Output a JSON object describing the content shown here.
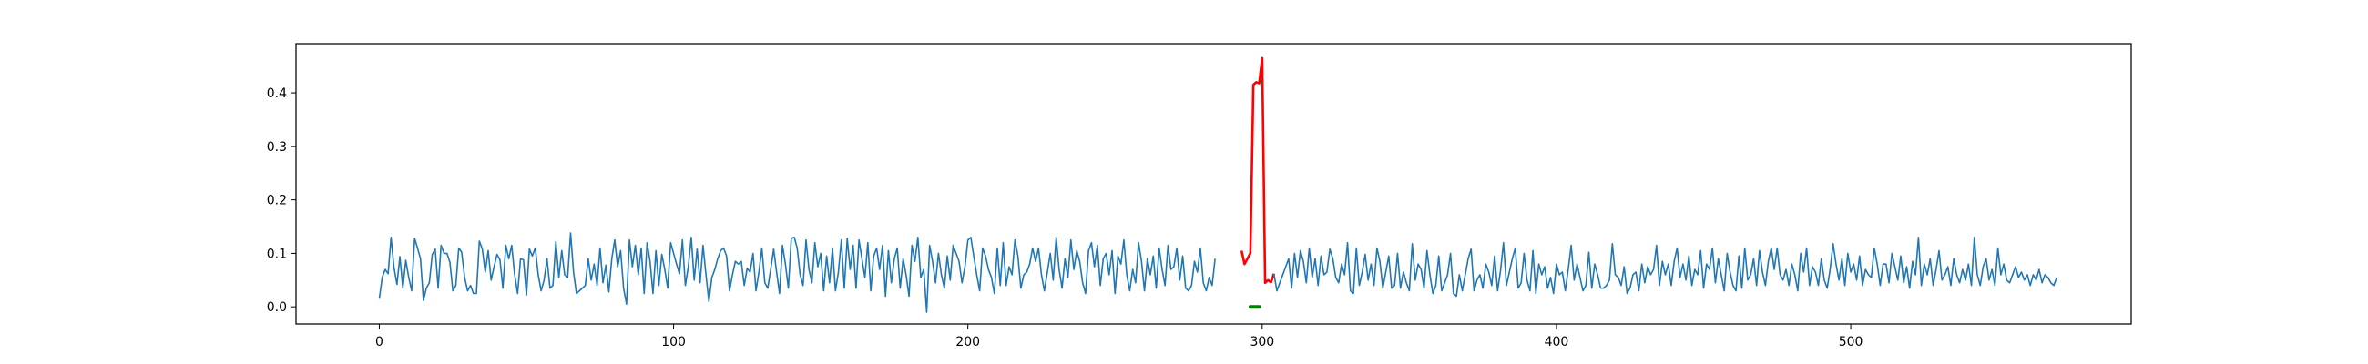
{
  "chart_data": {
    "type": "line",
    "title": "",
    "xlabel": "",
    "ylabel": "",
    "xlim": [
      -28.3,
      595.3
    ],
    "ylim": [
      -0.032,
      0.492
    ],
    "grid": false,
    "legend": null,
    "xticks": [
      0,
      100,
      200,
      300,
      400,
      500
    ],
    "xtick_labels": [
      "0",
      "100",
      "200",
      "300",
      "400",
      "500"
    ],
    "yticks": [
      0.0,
      0.1,
      0.2,
      0.3,
      0.4
    ],
    "ytick_labels": [
      "0.0",
      "0.1",
      "0.2",
      "0.3",
      "0.4"
    ],
    "series": [
      {
        "role": "signal",
        "color": "#1f77b4",
        "x_start": 0,
        "values": [
          0.015,
          0.055,
          0.07,
          0.062,
          0.13,
          0.073,
          0.042,
          0.094,
          0.035,
          0.087,
          0.055,
          0.03,
          0.128,
          0.11,
          0.09,
          0.012,
          0.035,
          0.045,
          0.098,
          0.108,
          0.035,
          0.115,
          0.1,
          0.1,
          0.083,
          0.03,
          0.04,
          0.11,
          0.102,
          0.055,
          0.03,
          0.04,
          0.025,
          0.025,
          0.123,
          0.108,
          0.065,
          0.105,
          0.05,
          0.075,
          0.098,
          0.088,
          0.035,
          0.115,
          0.09,
          0.115,
          0.06,
          0.025,
          0.09,
          0.088,
          0.022,
          0.108,
          0.095,
          0.11,
          0.06,
          0.03,
          0.05,
          0.09,
          0.035,
          0.04,
          0.122,
          0.055,
          0.105,
          0.06,
          0.055,
          0.138,
          0.065,
          0.025,
          0.03,
          0.035,
          0.04,
          0.09,
          0.05,
          0.08,
          0.04,
          0.11,
          0.045,
          0.078,
          0.028,
          0.09,
          0.125,
          0.075,
          0.105,
          0.035,
          0.005,
          0.125,
          0.075,
          0.115,
          0.06,
          0.11,
          0.025,
          0.12,
          0.085,
          0.025,
          0.105,
          0.04,
          0.098,
          0.07,
          0.035,
          0.12,
          0.1,
          0.08,
          0.062,
          0.125,
          0.04,
          0.075,
          0.13,
          0.05,
          0.108,
          0.045,
          0.115,
          0.06,
          0.01,
          0.055,
          0.07,
          0.09,
          0.105,
          0.11,
          0.095,
          0.03,
          0.06,
          0.085,
          0.08,
          0.085,
          0.04,
          0.072,
          0.065,
          0.1,
          0.03,
          0.065,
          0.11,
          0.045,
          0.035,
          0.07,
          0.108,
          0.065,
          0.025,
          0.115,
          0.08,
          0.035,
          0.128,
          0.13,
          0.11,
          0.06,
          0.04,
          0.125,
          0.07,
          0.045,
          0.12,
          0.075,
          0.1,
          0.03,
          0.095,
          0.045,
          0.11,
          0.03,
          0.065,
          0.125,
          0.035,
          0.128,
          0.07,
          0.115,
          0.035,
          0.125,
          0.09,
          0.055,
          0.12,
          0.03,
          0.095,
          0.11,
          0.07,
          0.115,
          0.02,
          0.105,
          0.045,
          0.09,
          0.11,
          0.035,
          0.09,
          0.06,
          0.02,
          0.115,
          0.085,
          0.13,
          0.055,
          0.07,
          -0.01,
          0.115,
          0.085,
          0.045,
          0.1,
          0.06,
          0.035,
          0.095,
          0.05,
          0.115,
          0.1,
          0.085,
          0.045,
          0.075,
          0.125,
          0.13,
          0.095,
          0.06,
          0.03,
          0.11,
          0.095,
          0.07,
          0.055,
          0.025,
          0.11,
          0.04,
          0.12,
          0.04,
          0.075,
          0.06,
          0.125,
          0.095,
          0.035,
          0.06,
          0.065,
          0.08,
          0.11,
          0.085,
          0.11,
          0.06,
          0.03,
          0.065,
          0.1,
          0.05,
          0.13,
          0.07,
          0.035,
          0.09,
          0.055,
          0.125,
          0.07,
          0.105,
          0.085,
          0.045,
          0.025,
          0.105,
          0.12,
          0.075,
          0.115,
          0.04,
          0.09,
          0.1,
          0.06,
          0.105,
          0.025,
          0.095,
          0.08,
          0.125,
          0.06,
          0.03,
          0.07,
          0.045,
          0.12,
          0.085,
          0.03,
          0.09,
          0.06,
          0.095,
          0.035,
          0.11,
          0.07,
          0.04,
          0.115,
          0.07,
          0.075,
          0.11,
          0.05,
          0.095,
          0.035,
          0.03,
          0.04,
          0.085,
          0.065,
          0.11,
          0.045,
          0.03,
          0.055,
          0.04,
          0.09
        ]
      },
      {
        "role": "anomaly",
        "color": "#ff0000",
        "x_start": 293,
        "values": [
          0.105,
          0.08,
          0.09,
          0.1,
          0.415,
          0.42,
          0.418,
          0.465,
          0.045,
          0.05,
          0.046,
          0.062
        ]
      },
      {
        "role": "signal",
        "color": "#1f77b4",
        "x_start": 304,
        "values": [
          0.062,
          0.03,
          0.045,
          0.06,
          0.075,
          0.09,
          0.035,
          0.1,
          0.055,
          0.105,
          0.085,
          0.045,
          0.11,
          0.055,
          0.09,
          0.04,
          0.095,
          0.06,
          0.065,
          0.108,
          0.09,
          0.055,
          0.045,
          0.08,
          0.06,
          0.12,
          0.03,
          0.025,
          0.11,
          0.04,
          0.065,
          0.098,
          0.05,
          0.08,
          0.04,
          0.11,
          0.085,
          0.035,
          0.065,
          0.095,
          0.035,
          0.04,
          0.1,
          0.035,
          0.065,
          0.045,
          0.03,
          0.118,
          0.05,
          0.08,
          0.07,
          0.035,
          0.105,
          0.06,
          0.025,
          0.04,
          0.095,
          0.03,
          0.045,
          0.06,
          0.1,
          0.025,
          0.02,
          0.06,
          0.03,
          0.06,
          0.09,
          0.108,
          0.03,
          0.05,
          0.06,
          0.035,
          0.08,
          0.065,
          0.04,
          0.095,
          0.03,
          0.068,
          0.12,
          0.04,
          0.065,
          0.09,
          0.11,
          0.035,
          0.045,
          0.1,
          0.05,
          0.03,
          0.105,
          0.025,
          0.08,
          0.06,
          0.075,
          0.035,
          0.055,
          0.025,
          0.08,
          0.06,
          0.065,
          0.03,
          0.07,
          0.115,
          0.05,
          0.08,
          0.055,
          0.03,
          0.04,
          0.102,
          0.035,
          0.08,
          0.06,
          0.035,
          0.035,
          0.04,
          0.05,
          0.118,
          0.06,
          0.055,
          0.04,
          0.075,
          0.025,
          0.035,
          0.06,
          0.065,
          0.03,
          0.08,
          0.045,
          0.075,
          0.06,
          0.07,
          0.115,
          0.04,
          0.085,
          0.06,
          0.08,
          0.04,
          0.085,
          0.11,
          0.055,
          0.08,
          0.05,
          0.095,
          0.04,
          0.07,
          0.06,
          0.105,
          0.035,
          0.08,
          0.07,
          0.11,
          0.045,
          0.09,
          0.06,
          0.03,
          0.1,
          0.065,
          0.04,
          0.03,
          0.095,
          0.035,
          0.11,
          0.05,
          0.06,
          0.09,
          0.04,
          0.105,
          0.065,
          0.04,
          0.085,
          0.11,
          0.07,
          0.11,
          0.06,
          0.05,
          0.07,
          0.04,
          0.08,
          0.06,
          0.03,
          0.1,
          0.065,
          0.11,
          0.04,
          0.075,
          0.065,
          0.04,
          0.09,
          0.05,
          0.035,
          0.07,
          0.118,
          0.08,
          0.05,
          0.09,
          0.04,
          0.1,
          0.065,
          0.08,
          0.05,
          0.095,
          0.04,
          0.07,
          0.06,
          0.055,
          0.11,
          0.08,
          0.04,
          0.08,
          0.08,
          0.045,
          0.1,
          0.075,
          0.05,
          0.095,
          0.045,
          0.075,
          0.035,
          0.085,
          0.06,
          0.13,
          0.04,
          0.08,
          0.06,
          0.09,
          0.04,
          0.07,
          0.105,
          0.05,
          0.06,
          0.075,
          0.04,
          0.09,
          0.06,
          0.045,
          0.07,
          0.05,
          0.08,
          0.04,
          0.13,
          0.06,
          0.04,
          0.075,
          0.09,
          0.05,
          0.07,
          0.04,
          0.11,
          0.06,
          0.08,
          0.05,
          0.045,
          0.06,
          0.075,
          0.055,
          0.065,
          0.05,
          0.06,
          0.04,
          0.06,
          0.05,
          0.07,
          0.045,
          0.06,
          0.055,
          0.045,
          0.04,
          0.055
        ]
      },
      {
        "role": "label-marker",
        "color": "#008000",
        "x": [
          296,
          297,
          298,
          299
        ],
        "values": [
          0.0,
          0.0,
          0.0,
          0.0
        ]
      }
    ]
  }
}
